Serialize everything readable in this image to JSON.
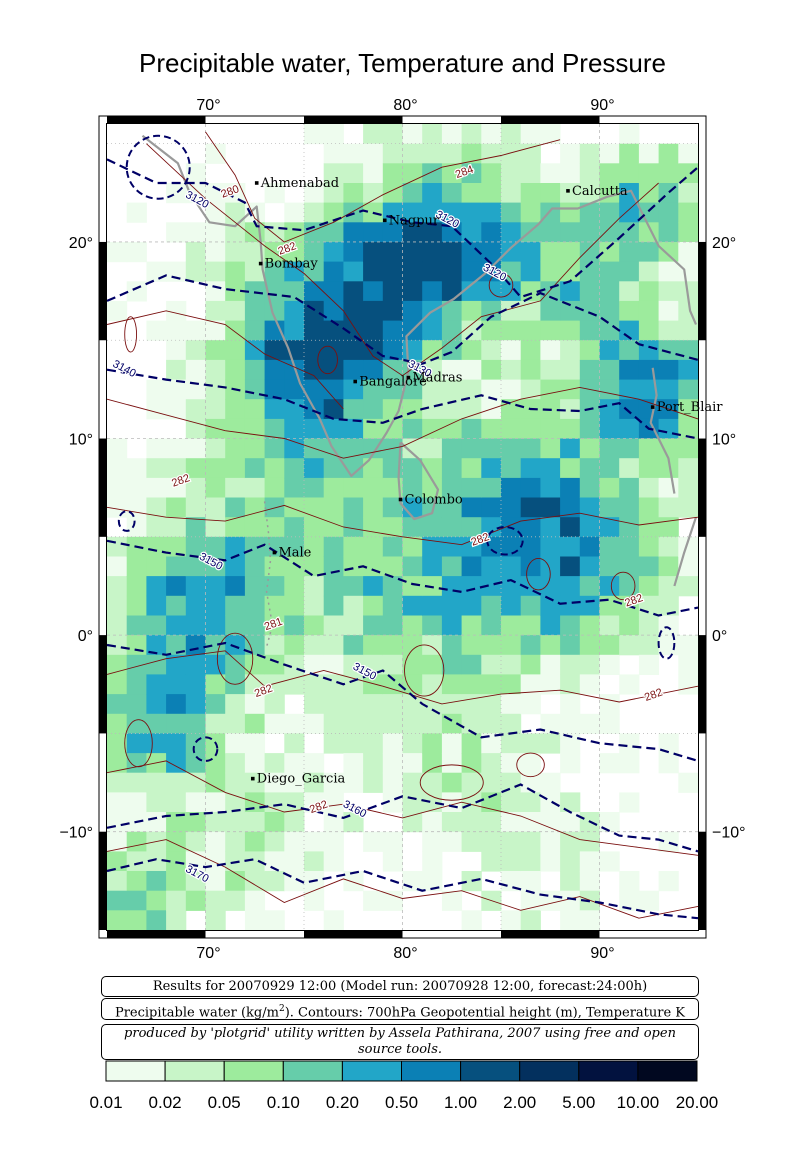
{
  "title": "Precipitable water, Temperature and Pressure",
  "map": {
    "lon_range": [
      65,
      95
    ],
    "lat_range": [
      -15,
      26
    ],
    "lon_ticks": [
      70,
      80,
      90
    ],
    "lat_ticks": [
      -10,
      0,
      10,
      20
    ],
    "lon_tick_labels": [
      "70°",
      "80°",
      "90°"
    ],
    "lat_tick_labels": [
      "−10°",
      "0°",
      "10°",
      "20°"
    ],
    "colors": {
      "coast": "#9a9a9a",
      "pressure_contour": "#000066",
      "temperature_contour": "#7a1010",
      "grid": "#bbbbbb"
    },
    "cities": [
      {
        "name": "Ahmenabad",
        "lon": 72.6,
        "lat": 23.0
      },
      {
        "name": "Nagpur",
        "lon": 79.1,
        "lat": 21.1
      },
      {
        "name": "Calcutta",
        "lon": 88.4,
        "lat": 22.6
      },
      {
        "name": "Bombay",
        "lon": 72.8,
        "lat": 18.9
      },
      {
        "name": "Bangalore",
        "lon": 77.6,
        "lat": 12.9
      },
      {
        "name": "Madras",
        "lon": 80.3,
        "lat": 13.1
      },
      {
        "name": "Port_Blair",
        "lon": 92.7,
        "lat": 11.6
      },
      {
        "name": "Colombo",
        "lon": 79.9,
        "lat": 6.9
      },
      {
        "name": "Male",
        "lon": 73.5,
        "lat": 4.2
      },
      {
        "name": "Diego_Garcia",
        "lon": 72.4,
        "lat": -7.3
      }
    ],
    "contour_labels": [
      {
        "text": "3120",
        "lon": 69.5,
        "lat": 22.0,
        "kind": "pressure"
      },
      {
        "text": "3120",
        "lon": 82.2,
        "lat": 21.0,
        "kind": "pressure"
      },
      {
        "text": "3120",
        "lon": 84.6,
        "lat": 18.3,
        "kind": "pressure"
      },
      {
        "text": "3140",
        "lon": 65.8,
        "lat": 13.4,
        "kind": "pressure"
      },
      {
        "text": "3130",
        "lon": 80.8,
        "lat": 13.4,
        "kind": "pressure"
      },
      {
        "text": "3150",
        "lon": 70.2,
        "lat": 3.6,
        "kind": "pressure"
      },
      {
        "text": "3150",
        "lon": 78.0,
        "lat": -2.0,
        "kind": "pressure"
      },
      {
        "text": "3160",
        "lon": 77.5,
        "lat": -9.0,
        "kind": "pressure"
      },
      {
        "text": "3170",
        "lon": 69.5,
        "lat": -12.3,
        "kind": "pressure"
      },
      {
        "text": "284",
        "lon": 83.2,
        "lat": 23.4,
        "kind": "temperature"
      },
      {
        "text": "282",
        "lon": 74.2,
        "lat": 19.5,
        "kind": "temperature"
      },
      {
        "text": "280",
        "lon": 71.3,
        "lat": 22.4,
        "kind": "temperature"
      },
      {
        "text": "282",
        "lon": 68.8,
        "lat": 7.7,
        "kind": "temperature"
      },
      {
        "text": "282",
        "lon": 84.0,
        "lat": 4.7,
        "kind": "temperature"
      },
      {
        "text": "282",
        "lon": 91.8,
        "lat": 1.6,
        "kind": "temperature"
      },
      {
        "text": "281",
        "lon": 73.5,
        "lat": 0.4,
        "kind": "temperature"
      },
      {
        "text": "282",
        "lon": 73.0,
        "lat": -3.0,
        "kind": "temperature"
      },
      {
        "text": "282",
        "lon": 92.8,
        "lat": -3.2,
        "kind": "temperature"
      },
      {
        "text": "282",
        "lon": 75.8,
        "lat": -8.9,
        "kind": "temperature"
      }
    ]
  },
  "info": {
    "line1": "Results for 20070929 12:00 (Model run: 20070928 12:00, forecast:24:00h)",
    "line2_before": "Precipitable water (kg/m",
    "line2_sup": "2",
    "line2_after": ").  Contours: 700hPa Geopotential height (m), Temperature K",
    "line3": "produced by 'plotgrid' utility written by Assela Pathirana, 2007 using free and open source tools."
  },
  "legend": {
    "labels": [
      "0.01",
      "0.02",
      "0.05",
      "0.10",
      "0.20",
      "0.50",
      "1.00",
      "2.00",
      "5.00",
      "10.00",
      "20.00"
    ],
    "colors": [
      "#eefcee",
      "#c8f5c8",
      "#9deb9d",
      "#66cdaa",
      "#22a6c8",
      "#0b80b5",
      "#06507e",
      "#03305e",
      "#02123f",
      "#010820",
      "#000000"
    ]
  }
}
